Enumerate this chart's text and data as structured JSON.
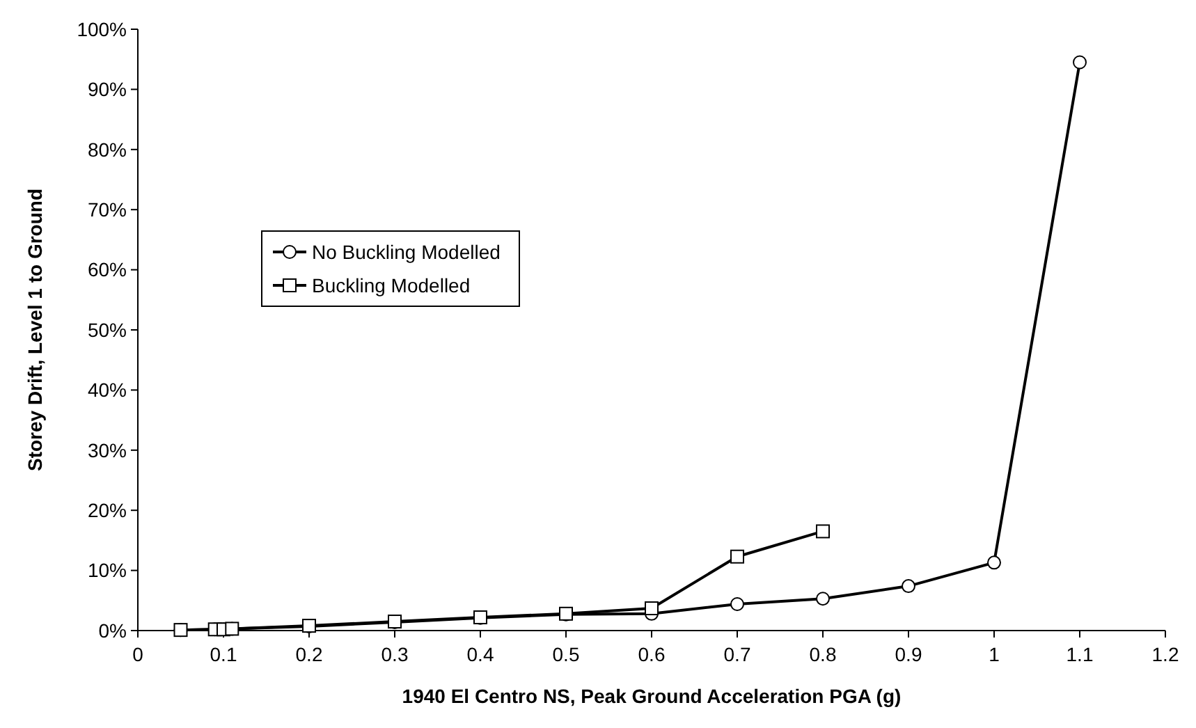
{
  "chart_data": {
    "type": "line",
    "xlabel": "1940 El Centro NS, Peak Ground Acceleration PGA (g)",
    "ylabel": "Storey Drift, Level 1 to Ground",
    "xlim": [
      0,
      1.2
    ],
    "xticks": [
      0,
      0.1,
      0.2,
      0.3,
      0.4,
      0.5,
      0.6,
      0.7,
      0.8,
      0.9,
      1,
      1.1,
      1.2
    ],
    "ylim": [
      0,
      100
    ],
    "yticks": [
      {
        "value": 0,
        "label": "0%"
      },
      {
        "value": 10,
        "label": "10%"
      },
      {
        "value": 20,
        "label": "20%"
      },
      {
        "value": 30,
        "label": "30%"
      },
      {
        "value": 40,
        "label": "40%"
      },
      {
        "value": 50,
        "label": "50%"
      },
      {
        "value": 60,
        "label": "60%"
      },
      {
        "value": 70,
        "label": "70%"
      },
      {
        "value": 80,
        "label": "80%"
      },
      {
        "value": 90,
        "label": "90%"
      },
      {
        "value": 100,
        "label": "100%"
      }
    ],
    "grid": false,
    "legend": "left",
    "line_style": "solid",
    "series": [
      {
        "name": "No Buckling Modelled",
        "color": "#000000",
        "marker": "circle",
        "x": [
          0.05,
          0.09,
          0.1,
          0.11,
          0.2,
          0.3,
          0.4,
          0.5,
          0.6,
          0.7,
          0.8,
          0.9,
          1,
          1.1
        ],
        "values": [
          0.1,
          0.2,
          0.2,
          0.3,
          0.7,
          1.4,
          2.1,
          2.7,
          2.8,
          4.4,
          5.3,
          7.4,
          11.3,
          94.5
        ]
      },
      {
        "name": "Buckling Modelled",
        "color": "#000000",
        "marker": "square",
        "x": [
          0.05,
          0.09,
          0.1,
          0.11,
          0.2,
          0.3,
          0.4,
          0.5,
          0.6,
          0.7,
          0.8
        ],
        "values": [
          0.1,
          0.2,
          0.2,
          0.3,
          0.8,
          1.5,
          2.2,
          2.8,
          3.7,
          12.3,
          16.5
        ]
      }
    ]
  }
}
